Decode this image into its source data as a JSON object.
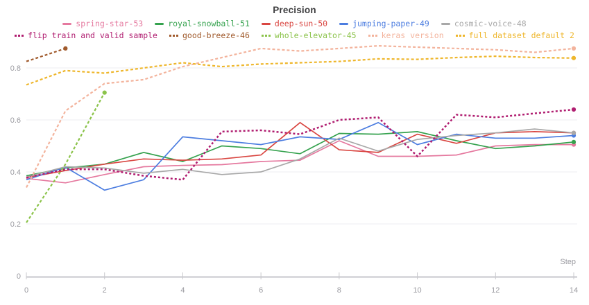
{
  "chart_data": {
    "type": "line",
    "title": "Precision",
    "xlabel": "Step",
    "xlim": [
      0,
      14
    ],
    "ylim": [
      0,
      0.9
    ],
    "grid": true,
    "legend_position": "top",
    "x_ticks": [
      0,
      2,
      4,
      6,
      8,
      10,
      12,
      14
    ],
    "x_tick_labels": [
      "0",
      "2",
      "4",
      "6",
      "8",
      "10",
      "12",
      "14"
    ],
    "y_ticks": [
      0,
      0.2,
      0.4,
      0.6,
      0.8
    ],
    "y_tick_labels": [
      "0",
      "0.2",
      "0.4",
      "0.6",
      "0.8"
    ],
    "series": [
      {
        "name": "spring-star-53",
        "color": "#e5799f",
        "line_style": "solid",
        "end_marker": true,
        "x": [
          0,
          1,
          2,
          3,
          4,
          5,
          6,
          7,
          8,
          9,
          10,
          11,
          12,
          13,
          14
        ],
        "values": [
          0.375,
          0.358,
          0.39,
          0.42,
          0.425,
          0.428,
          0.44,
          0.445,
          0.52,
          0.46,
          0.46,
          0.465,
          0.5,
          0.505,
          0.505
        ]
      },
      {
        "name": "royal-snowball-51",
        "color": "#35a24e",
        "line_style": "solid",
        "end_marker": true,
        "x": [
          0,
          1,
          2,
          3,
          4,
          5,
          6,
          7,
          8,
          9,
          10,
          11,
          12,
          13,
          14
        ],
        "values": [
          0.385,
          0.415,
          0.43,
          0.475,
          0.44,
          0.5,
          0.49,
          0.47,
          0.548,
          0.545,
          0.555,
          0.52,
          0.49,
          0.5,
          0.515
        ]
      },
      {
        "name": "deep-sun-50",
        "color": "#d94641",
        "line_style": "solid",
        "end_marker": true,
        "x": [
          0,
          1,
          2,
          3,
          4,
          5,
          6,
          7,
          8,
          9,
          10,
          11,
          12,
          13,
          14
        ],
        "values": [
          0.378,
          0.405,
          0.43,
          0.45,
          0.445,
          0.45,
          0.465,
          0.59,
          0.485,
          0.475,
          0.545,
          0.51,
          0.55,
          0.555,
          0.55
        ]
      },
      {
        "name": "jumping-paper-49",
        "color": "#4c7de0",
        "line_style": "solid",
        "end_marker": true,
        "x": [
          0,
          1,
          2,
          3,
          4,
          5,
          6,
          7,
          8,
          9,
          10,
          11,
          12,
          13,
          14
        ],
        "values": [
          0.37,
          0.418,
          0.33,
          0.37,
          0.535,
          0.52,
          0.505,
          0.535,
          0.525,
          0.59,
          0.505,
          0.545,
          0.53,
          0.53,
          0.54
        ]
      },
      {
        "name": "cosmic-voice-48",
        "color": "#a8a8a8",
        "line_style": "solid",
        "end_marker": true,
        "x": [
          0,
          1,
          2,
          3,
          4,
          5,
          6,
          7,
          8,
          9,
          10,
          11,
          12,
          13,
          14
        ],
        "values": [
          0.38,
          0.42,
          0.415,
          0.395,
          0.41,
          0.39,
          0.4,
          0.45,
          0.53,
          0.48,
          0.525,
          0.54,
          0.55,
          0.565,
          0.55
        ]
      },
      {
        "name": "flip train and valid sample",
        "color": "#b01d70",
        "line_style": "dotted",
        "end_marker": true,
        "x": [
          0,
          1,
          2,
          3,
          4,
          5,
          6,
          7,
          8,
          9,
          10,
          11,
          12,
          13,
          14
        ],
        "values": [
          0.378,
          0.41,
          0.41,
          0.385,
          0.37,
          0.555,
          0.56,
          0.545,
          0.6,
          0.61,
          0.46,
          0.62,
          0.61,
          0.625,
          0.64
        ]
      },
      {
        "name": "good-breeze-46",
        "color": "#a05a2c",
        "line_style": "dotted",
        "end_marker": true,
        "x": [
          0,
          1
        ],
        "values": [
          0.825,
          0.875
        ]
      },
      {
        "name": "whole-elevator-45",
        "color": "#8bc34a",
        "line_style": "dotted",
        "end_marker": true,
        "x": [
          0,
          1,
          2
        ],
        "values": [
          0.205,
          0.43,
          0.705
        ]
      },
      {
        "name": "keras version",
        "color": "#f3b39c",
        "line_style": "dotted",
        "end_marker": true,
        "x": [
          0,
          1,
          2,
          3,
          4,
          5,
          6,
          7,
          8,
          9,
          10,
          11,
          12,
          13,
          14
        ],
        "values": [
          0.34,
          0.635,
          0.74,
          0.755,
          0.805,
          0.84,
          0.875,
          0.865,
          0.875,
          0.885,
          0.88,
          0.875,
          0.87,
          0.86,
          0.875
        ]
      },
      {
        "name": "full dataset default 2",
        "color": "#eeb62b",
        "line_style": "dotted",
        "end_marker": true,
        "x": [
          0,
          1,
          2,
          3,
          4,
          5,
          6,
          7,
          8,
          9,
          10,
          11,
          12,
          13,
          14
        ],
        "values": [
          0.735,
          0.79,
          0.78,
          0.8,
          0.82,
          0.805,
          0.815,
          0.82,
          0.825,
          0.835,
          0.833,
          0.84,
          0.845,
          0.84,
          0.838
        ]
      }
    ]
  },
  "style": {
    "grid_color": "#ededf0",
    "axis_color": "#dadade",
    "tick_color": "#c8c8cc",
    "tick_label_color": "#9a9aa0",
    "title_color": "#3c3c3e",
    "background": "#ffffff"
  }
}
